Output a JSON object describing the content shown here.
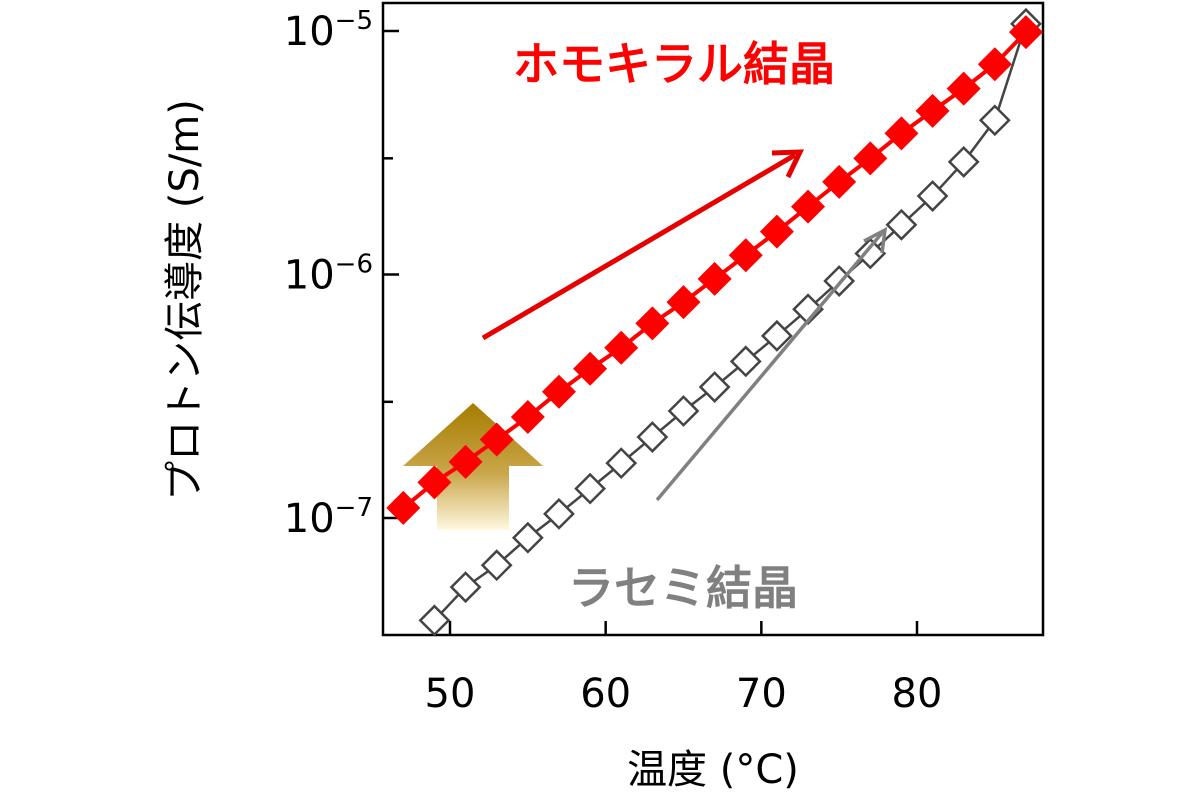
{
  "colors": {
    "homochiral": "#ff0000",
    "racemic": "#444444",
    "racemic_label": "#808080",
    "racemic_arrow": "#808080",
    "homochiral_arrow": "#e60000",
    "gold_arrow_top": "#a67c00",
    "gold_arrow_bottom": "#fff8e0",
    "axis": "#000000"
  },
  "icons": {
    "up_arrow": "gold-up-arrow-icon"
  },
  "chart_data": {
    "type": "scatter",
    "title": "",
    "xlabel": "温度 (°C)",
    "ylabel": "プロトン伝導度 (S/m)",
    "xlim": [
      46,
      88
    ],
    "ylim": [
      3.5e-08,
      1.35e-05
    ],
    "yscale": "log",
    "grid": false,
    "x_ticks": [
      {
        "value": 50,
        "label": "50"
      },
      {
        "value": 60,
        "label": "60"
      },
      {
        "value": 70,
        "label": "70"
      },
      {
        "value": 80,
        "label": "80"
      }
    ],
    "y_major_ticks": [
      {
        "value": 1e-07,
        "base": "10",
        "exp": "−7"
      },
      {
        "value": 1e-06,
        "base": "10",
        "exp": "−6"
      },
      {
        "value": 1e-05,
        "base": "10",
        "exp": "−5"
      }
    ],
    "y_minor_ticks": [
      3e-07,
      3e-06
    ],
    "series": [
      {
        "name": "ホモキラル結晶",
        "marker": "filled-diamond",
        "x": [
          47,
          49,
          51,
          53,
          55,
          57,
          59,
          61,
          63,
          65,
          67,
          69,
          71,
          73,
          75,
          77,
          79,
          81,
          83,
          85,
          87
        ],
        "y": [
          1.1e-07,
          1.4e-07,
          1.7e-07,
          2.1e-07,
          2.6e-07,
          3.3e-07,
          4.1e-07,
          5e-07,
          6.3e-07,
          7.7e-07,
          9.6e-07,
          1.2e-06,
          1.5e-06,
          1.9e-06,
          2.4e-06,
          3e-06,
          3.8e-06,
          4.7e-06,
          5.8e-06,
          7.3e-06,
          9.9e-06
        ]
      },
      {
        "name": "ラセミ結晶",
        "marker": "open-square",
        "x": [
          49,
          51,
          53,
          55,
          57,
          59,
          61,
          63,
          65,
          67,
          69,
          71,
          73,
          75,
          77,
          79,
          81,
          83,
          85,
          87
        ],
        "y": [
          3.8e-08,
          5.2e-08,
          6.4e-08,
          8.3e-08,
          1.04e-07,
          1.32e-07,
          1.68e-07,
          2.15e-07,
          2.75e-07,
          3.45e-07,
          4.4e-07,
          5.6e-07,
          7.2e-07,
          9.4e-07,
          1.22e-06,
          1.6e-06,
          2.1e-06,
          2.9e-06,
          4.3e-06,
          1.07e-05
        ]
      }
    ],
    "annotations": {
      "homochiral_label": "ホモキラル結晶",
      "racemic_label": "ラセミ結晶"
    }
  }
}
